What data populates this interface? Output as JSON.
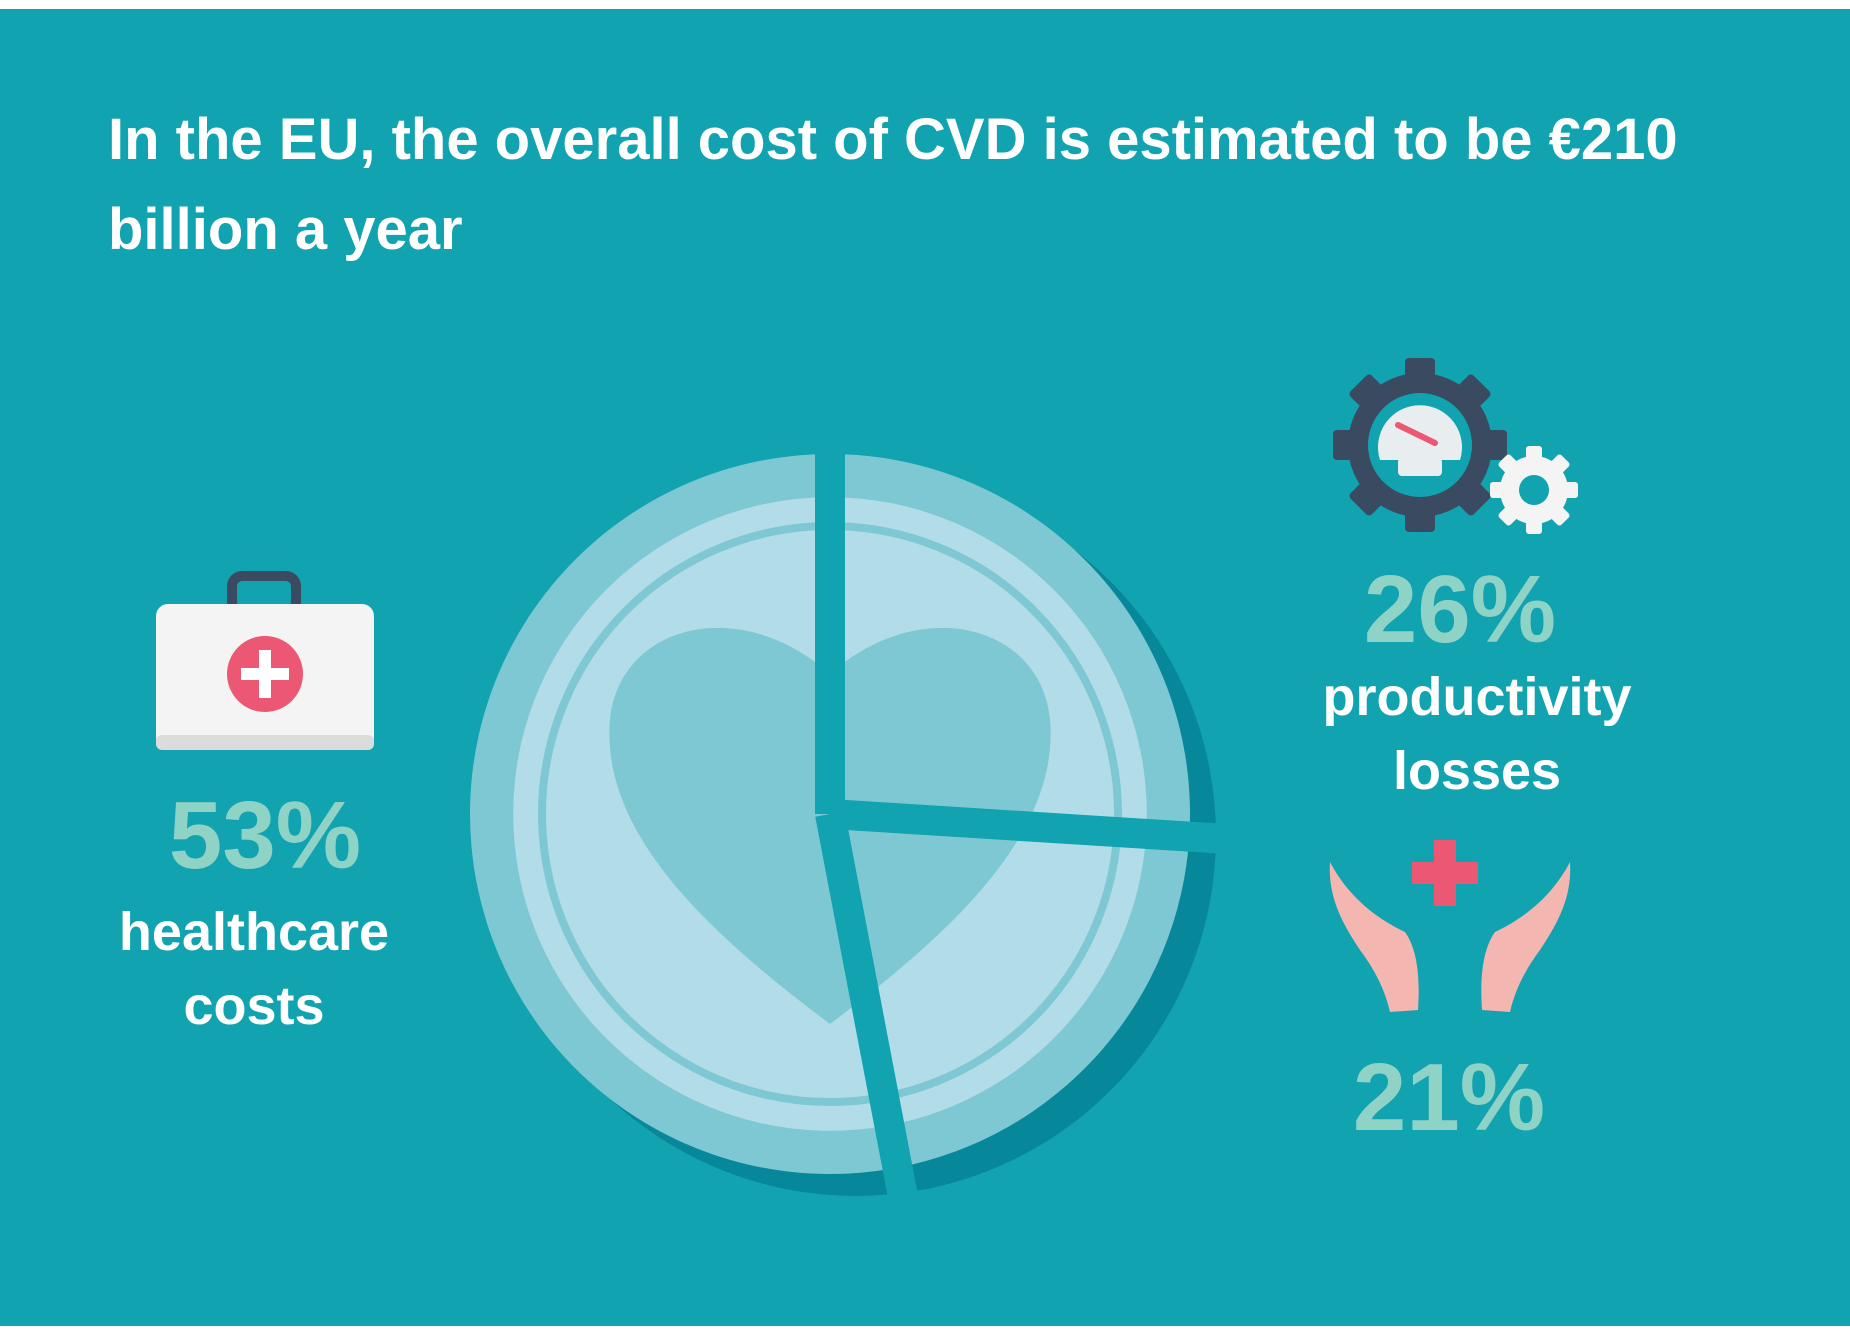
{
  "chart_data": {
    "type": "pie",
    "title": "In the EU, the overall cost of CVD is estimated to be €210 billion a year",
    "categories": [
      "healthcare costs",
      "productivity losses",
      null
    ],
    "values": [
      53,
      26,
      21
    ],
    "value_labels": [
      "53%",
      "26%",
      "21%"
    ],
    "color": "#7ec8d3"
  }
}
